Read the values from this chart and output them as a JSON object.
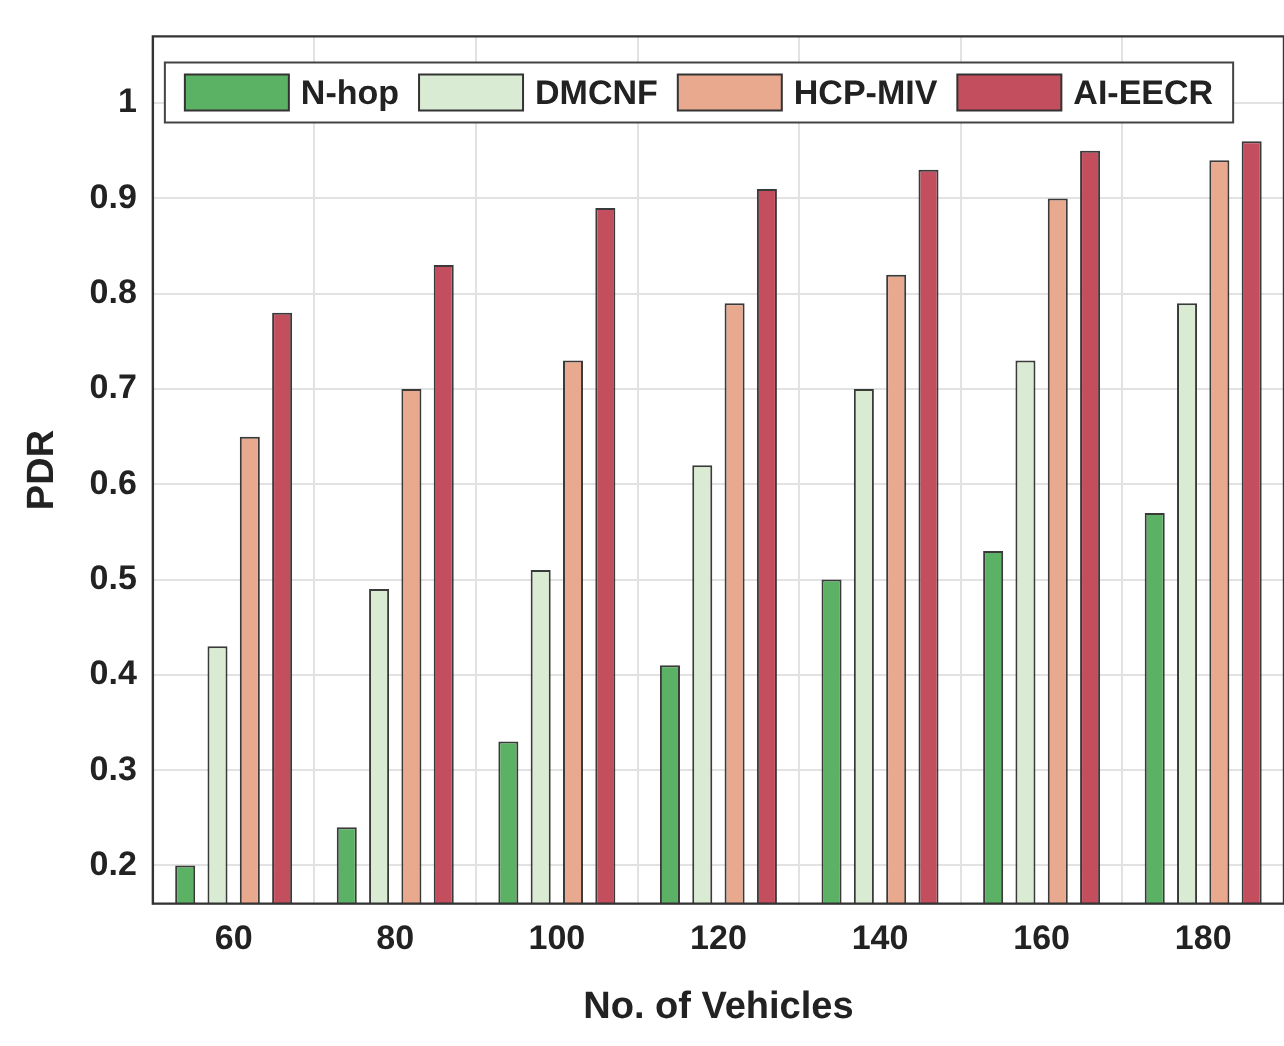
{
  "chart_data": {
    "type": "bar",
    "xlabel": "No. of Vehicles",
    "ylabel": "PDR",
    "categories": [
      "60",
      "80",
      "100",
      "120",
      "140",
      "160",
      "180"
    ],
    "series": [
      {
        "name": "N-hop",
        "color": "#5cb264",
        "values": [
          0.2,
          0.24,
          0.33,
          0.41,
          0.5,
          0.53,
          0.57
        ]
      },
      {
        "name": "DMCNF",
        "color": "#d9ecd3",
        "values": [
          0.43,
          0.49,
          0.51,
          0.62,
          0.7,
          0.73,
          0.79
        ]
      },
      {
        "name": "HCP-MIV",
        "color": "#e8a98f",
        "values": [
          0.65,
          0.7,
          0.73,
          0.79,
          0.82,
          0.9,
          0.94
        ]
      },
      {
        "name": "AI-EECR",
        "color": "#c34f5e",
        "values": [
          0.78,
          0.83,
          0.89,
          0.91,
          0.93,
          0.95,
          0.96
        ]
      }
    ],
    "ylim": [
      0.16,
      1.07
    ],
    "yticks": [
      0.2,
      0.3,
      0.4,
      0.5,
      0.6,
      0.7,
      0.8,
      0.9,
      1
    ],
    "grid": true,
    "legend": "top"
  }
}
